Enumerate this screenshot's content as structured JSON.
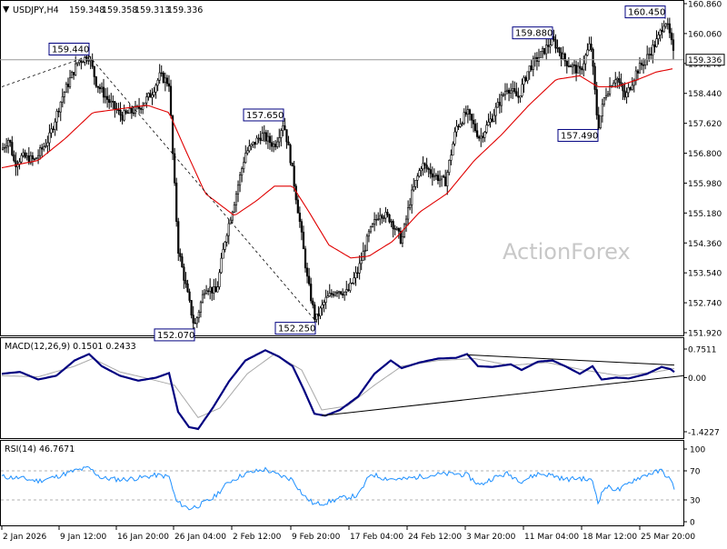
{
  "chart_data": {
    "type": "candlestick",
    "symbol": "USDJPY,H4",
    "ohlc_header": {
      "open": "159.348",
      "high": "159.358",
      "low": "159.313",
      "close": "159.336"
    },
    "current_price": "159.336",
    "watermark": "ActionForex",
    "price_axis": {
      "ylim": [
        151.92,
        160.86
      ],
      "ticks": [
        "160.860",
        "160.060",
        "159.240",
        "158.440",
        "157.620",
        "156.800",
        "155.980",
        "155.180",
        "154.360",
        "153.540",
        "152.740",
        "151.920"
      ]
    },
    "x_axis_labels": [
      "2 Jan 2026",
      "9 Jan 12:00",
      "16 Jan 20:00",
      "26 Jan 04:00",
      "2 Feb 12:00",
      "9 Feb 20:00",
      "17 Feb 04:00",
      "24 Feb 12:00",
      "3 Mar 20:00",
      "11 Mar 04:00",
      "18 Mar 12:00",
      "25 Mar 20:00"
    ],
    "bar_count": 360,
    "price_anchors": [
      [
        0,
        156.9
      ],
      [
        8,
        157.2
      ],
      [
        14,
        156.5
      ],
      [
        22,
        156.7
      ],
      [
        36,
        156.6
      ],
      [
        52,
        157.2
      ],
      [
        66,
        158.3
      ],
      [
        84,
        159.3
      ],
      [
        96,
        159.44
      ],
      [
        104,
        158.7
      ],
      [
        118,
        158.2
      ],
      [
        132,
        157.8
      ],
      [
        150,
        158.0
      ],
      [
        164,
        158.4
      ],
      [
        174,
        158.9
      ],
      [
        184,
        158.7
      ],
      [
        188,
        156.8
      ],
      [
        194,
        154.2
      ],
      [
        204,
        153.0
      ],
      [
        212,
        152.07
      ],
      [
        224,
        153.2
      ],
      [
        236,
        153.0
      ],
      [
        246,
        154.5
      ],
      [
        256,
        155.5
      ],
      [
        268,
        156.8
      ],
      [
        286,
        157.3
      ],
      [
        300,
        157.0
      ],
      [
        310,
        157.65
      ],
      [
        318,
        156.6
      ],
      [
        328,
        154.9
      ],
      [
        336,
        153.4
      ],
      [
        345,
        152.25
      ],
      [
        356,
        152.8
      ],
      [
        368,
        153.1
      ],
      [
        380,
        153.0
      ],
      [
        392,
        153.6
      ],
      [
        404,
        154.6
      ],
      [
        416,
        155.2
      ],
      [
        428,
        155.0
      ],
      [
        440,
        154.4
      ],
      [
        450,
        155.6
      ],
      [
        462,
        156.5
      ],
      [
        476,
        156.2
      ],
      [
        488,
        156.0
      ],
      [
        500,
        157.5
      ],
      [
        512,
        157.9
      ],
      [
        526,
        157.2
      ],
      [
        540,
        157.8
      ],
      [
        556,
        158.6
      ],
      [
        568,
        158.3
      ],
      [
        580,
        159.1
      ],
      [
        594,
        159.5
      ],
      [
        606,
        159.88
      ],
      [
        620,
        159.3
      ],
      [
        636,
        159.0
      ],
      [
        648,
        159.8
      ],
      [
        656,
        157.49
      ],
      [
        664,
        158.4
      ],
      [
        676,
        158.9
      ],
      [
        686,
        158.3
      ],
      [
        698,
        159.0
      ],
      [
        710,
        159.4
      ],
      [
        722,
        159.9
      ],
      [
        730,
        160.45
      ],
      [
        736,
        159.9
      ],
      [
        740,
        159.336
      ]
    ],
    "moving_average_anchors": [
      [
        0,
        156.4
      ],
      [
        40,
        156.6
      ],
      [
        70,
        157.2
      ],
      [
        100,
        157.9
      ],
      [
        130,
        158.0
      ],
      [
        160,
        158.1
      ],
      [
        184,
        157.9
      ],
      [
        200,
        157.0
      ],
      [
        224,
        155.7
      ],
      [
        256,
        155.1
      ],
      [
        280,
        155.5
      ],
      [
        300,
        155.9
      ],
      [
        320,
        155.9
      ],
      [
        338,
        155.2
      ],
      [
        360,
        154.3
      ],
      [
        384,
        153.95
      ],
      [
        404,
        154.0
      ],
      [
        430,
        154.4
      ],
      [
        460,
        155.2
      ],
      [
        490,
        155.7
      ],
      [
        520,
        156.6
      ],
      [
        550,
        157.3
      ],
      [
        580,
        158.1
      ],
      [
        610,
        158.8
      ],
      [
        636,
        158.9
      ],
      [
        656,
        158.6
      ],
      [
        676,
        158.6
      ],
      [
        700,
        158.8
      ],
      [
        720,
        159.0
      ],
      [
        740,
        159.1
      ]
    ],
    "price_labels": [
      {
        "text": "160.450",
        "value": 160.45,
        "x": 730
      },
      {
        "text": "159.880",
        "value": 159.88,
        "x": 606
      },
      {
        "text": "159.440",
        "value": 159.44,
        "x": 96
      },
      {
        "text": "157.650",
        "value": 157.65,
        "x": 310
      },
      {
        "text": "157.490",
        "value": 157.49,
        "x": 656
      },
      {
        "text": "152.070",
        "value": 152.07,
        "x": 212
      },
      {
        "text": "152.250",
        "value": 152.25,
        "x": 345
      }
    ],
    "trendlines_price": [
      {
        "from": [
          0,
          158.6
        ],
        "to": [
          96,
          159.44
        ],
        "style": "dashed"
      },
      {
        "from": [
          96,
          159.44
        ],
        "to": [
          345,
          152.25
        ],
        "style": "dashed"
      }
    ],
    "macd": {
      "label": "MACD(12,26,9) 0.1501 0.2433",
      "ylim": [
        -1.4227,
        0.7511
      ],
      "ticks": [
        "0.7511",
        "0.00",
        "-1.4227"
      ],
      "macd_anchors": [
        [
          0,
          0.1
        ],
        [
          20,
          0.15
        ],
        [
          40,
          -0.05
        ],
        [
          60,
          0.05
        ],
        [
          80,
          0.45
        ],
        [
          96,
          0.62
        ],
        [
          110,
          0.3
        ],
        [
          130,
          0.05
        ],
        [
          150,
          -0.08
        ],
        [
          170,
          0.0
        ],
        [
          184,
          0.12
        ],
        [
          194,
          -0.9
        ],
        [
          206,
          -1.3
        ],
        [
          216,
          -1.35
        ],
        [
          232,
          -0.8
        ],
        [
          250,
          -0.1
        ],
        [
          268,
          0.45
        ],
        [
          290,
          0.72
        ],
        [
          305,
          0.55
        ],
        [
          320,
          0.3
        ],
        [
          332,
          -0.3
        ],
        [
          344,
          -0.95
        ],
        [
          356,
          -1.0
        ],
        [
          372,
          -0.85
        ],
        [
          392,
          -0.5
        ],
        [
          410,
          0.1
        ],
        [
          428,
          0.45
        ],
        [
          440,
          0.25
        ],
        [
          460,
          0.4
        ],
        [
          480,
          0.5
        ],
        [
          500,
          0.52
        ],
        [
          512,
          0.62
        ],
        [
          524,
          0.3
        ],
        [
          540,
          0.28
        ],
        [
          560,
          0.35
        ],
        [
          572,
          0.2
        ],
        [
          590,
          0.42
        ],
        [
          606,
          0.45
        ],
        [
          620,
          0.3
        ],
        [
          636,
          0.1
        ],
        [
          650,
          0.3
        ],
        [
          660,
          -0.05
        ],
        [
          676,
          0.0
        ],
        [
          690,
          -0.02
        ],
        [
          710,
          0.1
        ],
        [
          726,
          0.28
        ],
        [
          736,
          0.22
        ],
        [
          740,
          0.15
        ]
      ],
      "signal_anchors": [
        [
          0,
          0.05
        ],
        [
          40,
          0.02
        ],
        [
          80,
          0.3
        ],
        [
          100,
          0.5
        ],
        [
          130,
          0.15
        ],
        [
          160,
          -0.02
        ],
        [
          190,
          -0.2
        ],
        [
          216,
          -1.05
        ],
        [
          240,
          -0.8
        ],
        [
          270,
          0.1
        ],
        [
          300,
          0.62
        ],
        [
          330,
          0.2
        ],
        [
          352,
          -0.85
        ],
        [
          380,
          -0.75
        ],
        [
          410,
          -0.2
        ],
        [
          440,
          0.3
        ],
        [
          480,
          0.45
        ],
        [
          520,
          0.5
        ],
        [
          560,
          0.32
        ],
        [
          600,
          0.4
        ],
        [
          640,
          0.2
        ],
        [
          680,
          0.05
        ],
        [
          720,
          0.15
        ],
        [
          740,
          0.24
        ]
      ],
      "trendlines": [
        {
          "from": [
            352,
            -1.0
          ],
          "to": [
            752,
            0.05
          ]
        },
        {
          "from": [
            512,
            0.6
          ],
          "to": [
            740,
            0.33
          ]
        }
      ]
    },
    "rsi": {
      "label": "RSI(14) 46.7671",
      "ylim": [
        0,
        100
      ],
      "ticks": [
        "100",
        "70",
        "30",
        "0"
      ],
      "levels": [
        70,
        30
      ],
      "anchors": [
        [
          0,
          62
        ],
        [
          20,
          60
        ],
        [
          40,
          56
        ],
        [
          60,
          62
        ],
        [
          80,
          70
        ],
        [
          96,
          74
        ],
        [
          110,
          60
        ],
        [
          130,
          58
        ],
        [
          150,
          60
        ],
        [
          170,
          64
        ],
        [
          184,
          62
        ],
        [
          192,
          28
        ],
        [
          206,
          18
        ],
        [
          216,
          22
        ],
        [
          232,
          32
        ],
        [
          250,
          55
        ],
        [
          268,
          66
        ],
        [
          290,
          72
        ],
        [
          300,
          66
        ],
        [
          320,
          58
        ],
        [
          332,
          36
        ],
        [
          344,
          24
        ],
        [
          356,
          26
        ],
        [
          372,
          32
        ],
        [
          392,
          36
        ],
        [
          406,
          66
        ],
        [
          420,
          60
        ],
        [
          440,
          58
        ],
        [
          460,
          62
        ],
        [
          480,
          65
        ],
        [
          500,
          66
        ],
        [
          512,
          64
        ],
        [
          526,
          50
        ],
        [
          540,
          60
        ],
        [
          556,
          66
        ],
        [
          572,
          56
        ],
        [
          590,
          66
        ],
        [
          606,
          64
        ],
        [
          620,
          58
        ],
        [
          636,
          60
        ],
        [
          650,
          56
        ],
        [
          656,
          28
        ],
        [
          664,
          48
        ],
        [
          680,
          44
        ],
        [
          696,
          58
        ],
        [
          712,
          66
        ],
        [
          726,
          70
        ],
        [
          734,
          60
        ],
        [
          740,
          47
        ]
      ]
    }
  }
}
